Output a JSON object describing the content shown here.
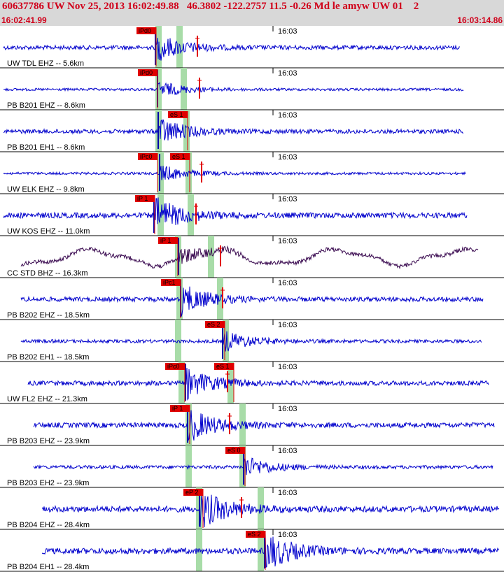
{
  "header": {
    "title": "60637786 UW Nov 25, 2013 16:02:49.88   46.3802 -122.2757 11.5 -0.26 Md le amyw UW 01    2",
    "start_time": "16:02:41.99",
    "end_time": "16:03:14.86"
  },
  "minute_label": "16:03",
  "colors": {
    "trace": "#0000cc",
    "broadband_trace": "#3a0a50",
    "pick_flag": "#e00000",
    "window": "#a8dca8",
    "header_bg": "#d8d8d8",
    "title_text": "#d0001a"
  },
  "traces": [
    {
      "label": "UW TDL EHZ -- 5.6km",
      "picks": [
        "iPd0"
      ]
    },
    {
      "label": "PB B201 EHZ -- 8.6km",
      "picks": [
        "iPd0"
      ]
    },
    {
      "label": "PB B201 EH1 -- 8.6km",
      "picks": [
        "eS 1"
      ]
    },
    {
      "label": "UW ELK EHZ -- 9.8km",
      "picks": [
        "iPc0",
        "eS 1"
      ]
    },
    {
      "label": "UW KOS EHZ -- 11.0km",
      "picks": [
        "iP 1"
      ]
    },
    {
      "label": "CC STD BHZ -- 16.3km",
      "picks": [
        "iP 1"
      ]
    },
    {
      "label": "PB B202 EHZ -- 18.5km",
      "picks": [
        "iPc1"
      ]
    },
    {
      "label": "PB B202 EH1 -- 18.5km",
      "picks": [
        "eS 2"
      ]
    },
    {
      "label": "UW FL2 EHZ -- 21.3km",
      "picks": [
        "iPc0",
        "eS 1"
      ]
    },
    {
      "label": "PB B203 EHZ -- 23.9km",
      "picks": [
        "iP 1"
      ]
    },
    {
      "label": "PB B203 EH2 -- 23.9km",
      "picks": [
        "eS 0"
      ]
    },
    {
      "label": "PB B204 EHZ -- 28.4km",
      "picks": [
        "eP 2"
      ]
    },
    {
      "label": "PB B204 EH1 -- 28.4km",
      "picks": [
        "eS 2"
      ]
    }
  ]
}
